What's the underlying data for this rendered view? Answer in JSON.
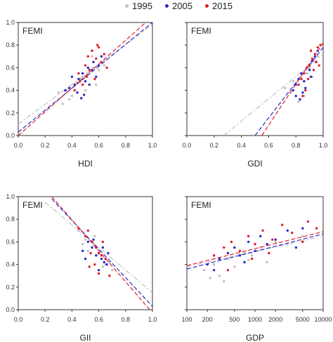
{
  "legend": [
    {
      "label": "1995",
      "color": "#c0c0c0"
    },
    {
      "label": "2005",
      "color": "#2a2acc"
    },
    {
      "label": "2015",
      "color": "#e0202a"
    }
  ],
  "chart_data": [
    {
      "type": "scatter",
      "panel_label": "FEMI",
      "xlabel": "HDI",
      "xlim": [
        0,
        1
      ],
      "ylim": [
        0,
        1
      ],
      "xticks": [
        "0.0",
        "0.2",
        "0.4",
        "0.6",
        "0.8",
        "1.0"
      ],
      "yticks": [
        "0.0",
        "0.2",
        "0.4",
        "0.6",
        "0.8",
        "1.0"
      ],
      "series": [
        {
          "color": "#c0c0c0",
          "points": [
            [
              0.3,
              0.38
            ],
            [
              0.36,
              0.4
            ],
            [
              0.4,
              0.35
            ],
            [
              0.44,
              0.47
            ],
            [
              0.48,
              0.52
            ],
            [
              0.52,
              0.55
            ],
            [
              0.56,
              0.6
            ],
            [
              0.6,
              0.58
            ],
            [
              0.64,
              0.62
            ],
            [
              0.42,
              0.44
            ],
            [
              0.5,
              0.4
            ],
            [
              0.33,
              0.28
            ],
            [
              0.58,
              0.45
            ],
            [
              0.46,
              0.5
            ],
            [
              0.38,
              0.32
            ],
            [
              0.55,
              0.7
            ]
          ],
          "fit": [
            [
              0,
              0.1
            ],
            [
              1,
              0.98
            ]
          ]
        },
        {
          "color": "#2a2acc",
          "points": [
            [
              0.38,
              0.42
            ],
            [
              0.42,
              0.45
            ],
            [
              0.45,
              0.5
            ],
            [
              0.48,
              0.55
            ],
            [
              0.5,
              0.48
            ],
            [
              0.52,
              0.6
            ],
            [
              0.55,
              0.58
            ],
            [
              0.58,
              0.52
            ],
            [
              0.6,
              0.62
            ],
            [
              0.44,
              0.38
            ],
            [
              0.47,
              0.33
            ],
            [
              0.4,
              0.52
            ],
            [
              0.53,
              0.45
            ],
            [
              0.62,
              0.7
            ],
            [
              0.35,
              0.4
            ],
            [
              0.56,
              0.65
            ],
            [
              0.49,
              0.36
            ]
          ],
          "fit": [
            [
              0,
              0.03
            ],
            [
              1,
              1.0
            ]
          ]
        },
        {
          "color": "#e0202a",
          "points": [
            [
              0.45,
              0.55
            ],
            [
              0.5,
              0.62
            ],
            [
              0.52,
              0.7
            ],
            [
              0.55,
              0.75
            ],
            [
              0.58,
              0.68
            ],
            [
              0.6,
              0.78
            ],
            [
              0.62,
              0.65
            ],
            [
              0.64,
              0.72
            ],
            [
              0.48,
              0.45
            ],
            [
              0.53,
              0.58
            ],
            [
              0.57,
              0.5
            ],
            [
              0.42,
              0.4
            ],
            [
              0.66,
              0.6
            ],
            [
              0.59,
              0.8
            ],
            [
              0.51,
              0.52
            ],
            [
              0.46,
              0.48
            ]
          ],
          "fit": [
            [
              0,
              0.0
            ],
            [
              0.95,
              1.0
            ]
          ]
        }
      ]
    },
    {
      "type": "scatter",
      "panel_label": "FEMI",
      "xlabel": "GDI",
      "xlim": [
        0,
        1
      ],
      "ylim": [
        0,
        1
      ],
      "xticks": [
        "0.0",
        "0.2",
        "0.4",
        "0.6",
        "0.8",
        "1.0"
      ],
      "yticks": [],
      "series": [
        {
          "color": "#c0c0c0",
          "points": [
            [
              0.72,
              0.42
            ],
            [
              0.76,
              0.38
            ],
            [
              0.8,
              0.45
            ],
            [
              0.84,
              0.5
            ],
            [
              0.86,
              0.35
            ],
            [
              0.88,
              0.55
            ],
            [
              0.9,
              0.6
            ],
            [
              0.92,
              0.52
            ],
            [
              0.94,
              0.65
            ],
            [
              0.82,
              0.3
            ],
            [
              0.78,
              0.48
            ],
            [
              0.96,
              0.7
            ]
          ],
          "fit": [
            [
              0.27,
              0.0
            ],
            [
              1,
              0.72
            ]
          ]
        },
        {
          "color": "#2a2acc",
          "points": [
            [
              0.78,
              0.4
            ],
            [
              0.8,
              0.45
            ],
            [
              0.82,
              0.5
            ],
            [
              0.84,
              0.55
            ],
            [
              0.86,
              0.48
            ],
            [
              0.88,
              0.6
            ],
            [
              0.9,
              0.58
            ],
            [
              0.92,
              0.66
            ],
            [
              0.94,
              0.7
            ],
            [
              0.85,
              0.38
            ],
            [
              0.83,
              0.32
            ],
            [
              0.87,
              0.42
            ],
            [
              0.91,
              0.52
            ],
            [
              0.96,
              0.75
            ],
            [
              0.8,
              0.35
            ]
          ],
          "fit": [
            [
              0.5,
              0.0
            ],
            [
              1,
              0.78
            ]
          ]
        },
        {
          "color": "#e0202a",
          "points": [
            [
              0.82,
              0.45
            ],
            [
              0.84,
              0.5
            ],
            [
              0.86,
              0.55
            ],
            [
              0.88,
              0.6
            ],
            [
              0.9,
              0.62
            ],
            [
              0.92,
              0.68
            ],
            [
              0.94,
              0.72
            ],
            [
              0.96,
              0.78
            ],
            [
              0.98,
              0.8
            ],
            [
              0.89,
              0.5
            ],
            [
              0.87,
              0.4
            ],
            [
              0.93,
              0.58
            ],
            [
              0.95,
              0.65
            ],
            [
              0.91,
              0.75
            ],
            [
              0.85,
              0.35
            ],
            [
              0.97,
              0.62
            ]
          ],
          "fit": [
            [
              0.55,
              0.0
            ],
            [
              1,
              0.82
            ]
          ]
        }
      ]
    },
    {
      "type": "scatter",
      "panel_label": "FEMI",
      "xlabel": "GII",
      "xlim": [
        0,
        1
      ],
      "ylim": [
        0,
        1
      ],
      "xticks": [
        "0.0",
        "0.2",
        "0.4",
        "0.6",
        "0.8",
        "1.0"
      ],
      "yticks": [
        "0.0",
        "0.2",
        "0.4",
        "0.6",
        "0.8",
        "1.0"
      ],
      "series": [
        {
          "color": "#c0c0c0",
          "points": [
            [
              0.45,
              0.7
            ],
            [
              0.5,
              0.62
            ],
            [
              0.55,
              0.6
            ],
            [
              0.58,
              0.55
            ],
            [
              0.6,
              0.5
            ],
            [
              0.62,
              0.45
            ],
            [
              0.65,
              0.4
            ],
            [
              0.68,
              0.42
            ],
            [
              0.7,
              0.35
            ],
            [
              0.52,
              0.52
            ],
            [
              0.57,
              0.65
            ],
            [
              0.63,
              0.38
            ],
            [
              0.48,
              0.58
            ]
          ],
          "fit": [
            [
              0.2,
              0.95
            ],
            [
              1,
              0.15
            ]
          ]
        },
        {
          "color": "#2a2acc",
          "points": [
            [
              0.48,
              0.52
            ],
            [
              0.52,
              0.6
            ],
            [
              0.55,
              0.55
            ],
            [
              0.58,
              0.48
            ],
            [
              0.6,
              0.5
            ],
            [
              0.62,
              0.45
            ],
            [
              0.64,
              0.42
            ],
            [
              0.66,
              0.4
            ],
            [
              0.56,
              0.62
            ],
            [
              0.6,
              0.35
            ],
            [
              0.63,
              0.55
            ],
            [
              0.5,
              0.45
            ],
            [
              0.67,
              0.5
            ]
          ],
          "fit": [
            [
              0.25,
              0.98
            ],
            [
              1,
              0.03
            ]
          ]
        },
        {
          "color": "#e0202a",
          "points": [
            [
              0.45,
              0.72
            ],
            [
              0.5,
              0.65
            ],
            [
              0.52,
              0.7
            ],
            [
              0.55,
              0.6
            ],
            [
              0.58,
              0.55
            ],
            [
              0.6,
              0.5
            ],
            [
              0.62,
              0.48
            ],
            [
              0.65,
              0.45
            ],
            [
              0.57,
              0.4
            ],
            [
              0.6,
              0.32
            ],
            [
              0.54,
              0.5
            ],
            [
              0.63,
              0.6
            ],
            [
              0.68,
              0.3
            ],
            [
              0.53,
              0.38
            ]
          ],
          "fit": [
            [
              0.25,
              1.0
            ],
            [
              0.98,
              0.0
            ]
          ]
        }
      ]
    },
    {
      "type": "scatter",
      "panel_label": "FEMI",
      "xlabel": "GDP",
      "xscale": "log",
      "xlim": [
        100,
        10000
      ],
      "ylim": [
        0,
        1
      ],
      "xticks": [
        "100",
        "200",
        "500",
        "1000",
        "2000",
        "5000",
        "10000"
      ],
      "xtick_values": [
        100,
        200,
        500,
        1000,
        2000,
        5000,
        10000
      ],
      "yticks": [],
      "series": [
        {
          "color": "#c0c0c0",
          "points": [
            [
              180,
              0.35
            ],
            [
              250,
              0.4
            ],
            [
              300,
              0.3
            ],
            [
              400,
              0.45
            ],
            [
              500,
              0.38
            ],
            [
              700,
              0.5
            ],
            [
              900,
              0.48
            ],
            [
              1200,
              0.55
            ],
            [
              1500,
              0.42
            ],
            [
              2000,
              0.6
            ],
            [
              3000,
              0.58
            ],
            [
              5000,
              0.65
            ],
            [
              220,
              0.28
            ],
            [
              350,
              0.25
            ],
            [
              800,
              0.44
            ]
          ],
          "fit": [
            [
              100,
              0.38
            ],
            [
              10000,
              0.65
            ]
          ]
        },
        {
          "color": "#2a2acc",
          "points": [
            [
              200,
              0.4
            ],
            [
              300,
              0.45
            ],
            [
              400,
              0.5
            ],
            [
              500,
              0.55
            ],
            [
              600,
              0.48
            ],
            [
              800,
              0.6
            ],
            [
              1000,
              0.52
            ],
            [
              1500,
              0.58
            ],
            [
              2000,
              0.62
            ],
            [
              3000,
              0.7
            ],
            [
              5000,
              0.72
            ],
            [
              250,
              0.35
            ],
            [
              700,
              0.42
            ],
            [
              1200,
              0.65
            ],
            [
              4000,
              0.55
            ]
          ],
          "fit": [
            [
              100,
              0.36
            ],
            [
              10000,
              0.67
            ]
          ]
        },
        {
          "color": "#e0202a",
          "points": [
            [
              250,
              0.48
            ],
            [
              350,
              0.55
            ],
            [
              450,
              0.6
            ],
            [
              600,
              0.52
            ],
            [
              800,
              0.65
            ],
            [
              1000,
              0.58
            ],
            [
              1300,
              0.7
            ],
            [
              1800,
              0.62
            ],
            [
              2500,
              0.75
            ],
            [
              3500,
              0.68
            ],
            [
              6000,
              0.78
            ],
            [
              8000,
              0.72
            ],
            [
              400,
              0.35
            ],
            [
              900,
              0.45
            ],
            [
              1600,
              0.5
            ],
            [
              5000,
              0.6
            ]
          ],
          "fit": [
            [
              100,
              0.39
            ],
            [
              10000,
              0.69
            ]
          ]
        }
      ]
    }
  ]
}
